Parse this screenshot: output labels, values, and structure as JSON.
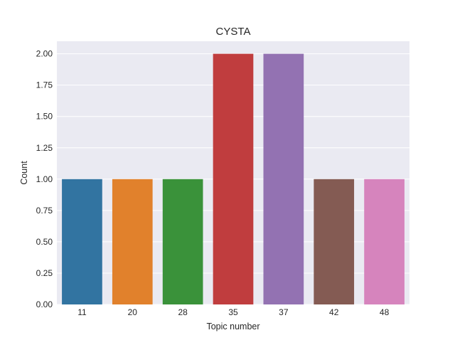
{
  "chart_data": {
    "type": "bar",
    "title": "CYSTA",
    "xlabel": "Topic number",
    "ylabel": "Count",
    "categories": [
      "11",
      "20",
      "28",
      "35",
      "37",
      "42",
      "48"
    ],
    "values": [
      1,
      1,
      1,
      2,
      2,
      1,
      1
    ],
    "ylim": [
      0,
      2.1
    ],
    "yticks": [
      "0.00",
      "0.25",
      "0.50",
      "0.75",
      "1.00",
      "1.25",
      "1.50",
      "1.75",
      "2.00"
    ],
    "grid": true,
    "legend": "none",
    "colors": [
      "#3274a1",
      "#e1812c",
      "#3a923a",
      "#c03d3e",
      "#9372b2",
      "#845b53",
      "#d684bd"
    ],
    "plot_background": "#eaeaf2",
    "grid_color": "#ffffff"
  }
}
